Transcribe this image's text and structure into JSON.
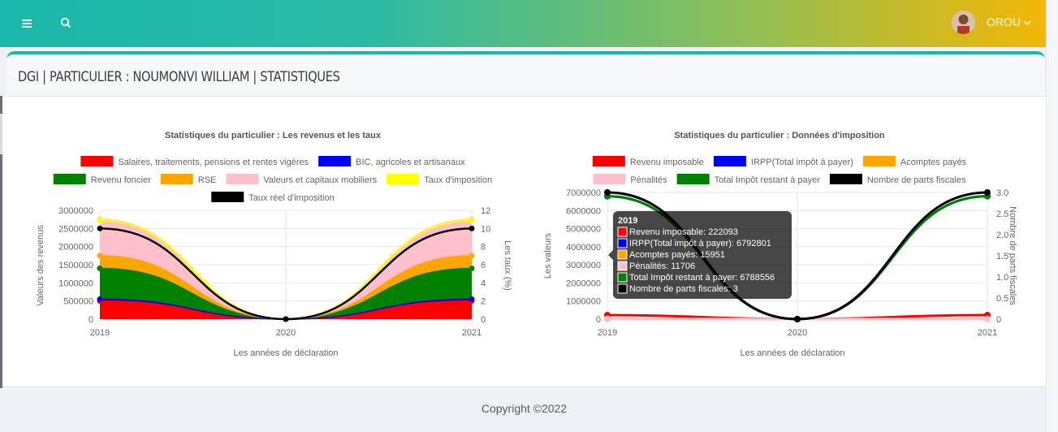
{
  "header": {
    "user_name": "OROU"
  },
  "page": {
    "title": "DGI | PARTICULIER : NOUMONVI WILLIAM | STATISTIQUES"
  },
  "footer": {
    "copyright": "Copyright ©2022"
  },
  "colors": {
    "accent": "#1bb8ab",
    "gradient_end": "#f2b705"
  },
  "chart_data": [
    {
      "type": "area",
      "title": "Statistiques du particulier : Les revenus et les taux",
      "xlabel": "Les années de déclaration",
      "ylabel": "Valeurs des revenus",
      "y2label": "Les taux (%)",
      "categories": [
        "2019",
        "2020",
        "2021"
      ],
      "ylim": [
        0,
        3000000
      ],
      "y2lim": [
        0,
        12
      ],
      "y_ticks": [
        "3000000",
        "2500000",
        "2000000",
        "1500000",
        "1000000",
        "500000",
        "0"
      ],
      "y2_ticks": [
        "12",
        "10",
        "8",
        "6",
        "4",
        "2",
        "0"
      ],
      "stacked": true,
      "series": [
        {
          "name": "Salaires, traitements, pensions et rentes vigères",
          "color": "#ff0000",
          "values": [
            500000,
            0,
            500000
          ]
        },
        {
          "name": "BIC, agricoles et artisanaux",
          "color": "#0000ff",
          "values": [
            50000,
            0,
            50000
          ]
        },
        {
          "name": "Revenu foncier",
          "color": "#008000",
          "values": [
            850000,
            0,
            850000
          ]
        },
        {
          "name": "RSE",
          "color": "#ffa500",
          "values": [
            350000,
            0,
            350000
          ]
        },
        {
          "name": "Valeurs et capitaux mobiliers",
          "color": "#ffc0cb",
          "values": [
            1000000,
            0,
            1000000
          ]
        }
      ],
      "rate_series": [
        {
          "name": "Taux d'imposition",
          "color": "#ffff00",
          "values": [
            10.9,
            0,
            10.9
          ]
        },
        {
          "name": "Taux réel d'imposition",
          "color": "#000000",
          "values": [
            10,
            0,
            10
          ]
        }
      ],
      "legend": "top"
    },
    {
      "type": "line",
      "title": "Statistiques du particulier : Données d'imposition",
      "xlabel": "Les années de déclaration",
      "ylabel": "Les valeurs",
      "y2label": "Nombre de parts fiscales",
      "categories": [
        "2019",
        "2020",
        "2021"
      ],
      "ylim": [
        0,
        7000000
      ],
      "y2lim": [
        0,
        3
      ],
      "y_ticks": [
        "7000000",
        "6000000",
        "5000000",
        "4000000",
        "3000000",
        "2000000",
        "1000000",
        "0"
      ],
      "y2_ticks": [
        "3.0",
        "2.5",
        "2.0",
        "1.5",
        "1.0",
        "0.5",
        "0"
      ],
      "series": [
        {
          "name": "Revenu imposable",
          "color": "#ff0000",
          "values": [
            222093,
            0,
            222093
          ]
        },
        {
          "name": "IRPP(Total impôt à payer)",
          "color": "#0000ff",
          "values": [
            6792801,
            0,
            6792801
          ]
        },
        {
          "name": "Acomptes payés",
          "color": "#ffa500",
          "values": [
            15951,
            0,
            15951
          ]
        },
        {
          "name": "Pénalités",
          "color": "#ffc0cb",
          "values": [
            11706,
            0,
            11706
          ]
        },
        {
          "name": "Total Impôt restant à payer",
          "color": "#008000",
          "values": [
            6788556,
            0,
            6788556
          ]
        },
        {
          "name": "Nombre de parts fiscales",
          "color": "#000000",
          "values": [
            3,
            0,
            3
          ],
          "axis": "right"
        }
      ],
      "legend": "top",
      "tooltip": {
        "title": "2019",
        "lines": [
          "Revenu imposable: 222093",
          "IRPP(Total impôt à payer): 6792801",
          "Acomptes payés: 15951",
          "Pénalités: 11706",
          "Total Impôt restant à payer: 6788556",
          "Nombre de parts fiscales: 3"
        ]
      }
    }
  ]
}
